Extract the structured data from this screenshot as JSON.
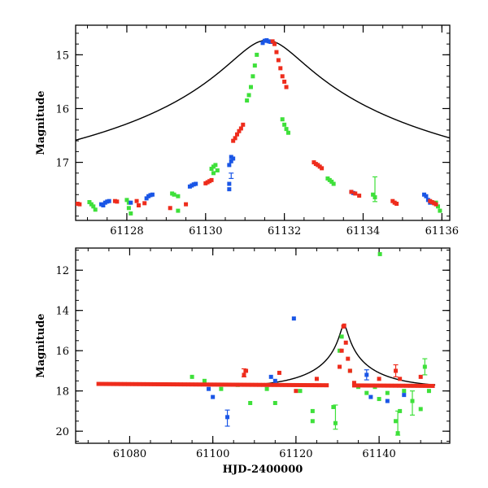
{
  "chart_data": [
    {
      "type": "scatter",
      "panel": "top",
      "title": "",
      "xlabel": "",
      "ylabel": "Magnitude",
      "xlim": [
        61126.7,
        61136.2
      ],
      "ylim": [
        18.08,
        14.45
      ],
      "y_inverted": true,
      "x_ticks": [
        61128,
        61130,
        61132,
        61134,
        61136
      ],
      "y_ticks": [
        15,
        16,
        17
      ],
      "model": {
        "t0": 61131.55,
        "peak_mag": 14.73,
        "base_mag": 17.86,
        "u0": 0.053,
        "tE": 16.0
      },
      "series": [
        {
          "name": "red",
          "color": "#ee2c1c",
          "points": [
            [
              61126.75,
              17.77
            ],
            [
              61126.8,
              17.78
            ],
            [
              61127.7,
              17.72
            ],
            [
              61127.75,
              17.73
            ],
            [
              61128.25,
              17.72
            ],
            [
              61128.3,
              17.8
            ],
            [
              61128.45,
              17.76
            ],
            [
              61129.1,
              17.85
            ],
            [
              61129.5,
              17.78
            ],
            [
              61130.0,
              17.39
            ],
            [
              61130.05,
              17.37
            ],
            [
              61130.1,
              17.35
            ],
            [
              61130.15,
              17.33
            ],
            [
              61130.7,
              16.6
            ],
            [
              61130.75,
              16.55
            ],
            [
              61130.8,
              16.48
            ],
            [
              61130.85,
              16.42
            ],
            [
              61130.9,
              16.37
            ],
            [
              61130.95,
              16.3
            ],
            [
              61131.7,
              14.75
            ],
            [
              61131.75,
              14.8
            ],
            [
              61131.8,
              14.95
            ],
            [
              61131.85,
              15.1
            ],
            [
              61131.9,
              15.25
            ],
            [
              61131.95,
              15.4
            ],
            [
              61132.0,
              15.5
            ],
            [
              61132.05,
              15.6
            ],
            [
              61132.75,
              17.0
            ],
            [
              61132.8,
              17.03
            ],
            [
              61132.85,
              17.05
            ],
            [
              61132.9,
              17.08
            ],
            [
              61132.95,
              17.11
            ],
            [
              61133.7,
              17.55
            ],
            [
              61133.8,
              17.58
            ],
            [
              61133.9,
              17.62
            ],
            [
              61134.75,
              17.72
            ],
            [
              61134.8,
              17.75
            ],
            [
              61134.85,
              17.77
            ],
            [
              61135.7,
              17.72
            ],
            [
              61135.75,
              17.74
            ],
            [
              61135.8,
              17.76
            ],
            [
              61135.85,
              17.78
            ]
          ]
        },
        {
          "name": "blue",
          "color": "#1a56e6",
          "points": [
            [
              61127.35,
              17.78
            ],
            [
              61127.4,
              17.8
            ],
            [
              61127.45,
              17.75
            ],
            [
              61127.5,
              17.73
            ],
            [
              61127.55,
              17.72
            ],
            [
              61128.1,
              17.75
            ],
            [
              61128.5,
              17.67
            ],
            [
              61128.55,
              17.63
            ],
            [
              61128.6,
              17.61
            ],
            [
              61128.65,
              17.6
            ],
            [
              61129.6,
              17.45
            ],
            [
              61129.65,
              17.43
            ],
            [
              61129.7,
              17.41
            ],
            [
              61129.75,
              17.4
            ],
            [
              61130.6,
              17.05
            ],
            [
              61130.6,
              17.4
            ],
            [
              61130.6,
              17.5
            ],
            [
              61130.65,
              16.98
            ],
            [
              61130.7,
              16.93
            ],
            [
              61130.65,
              16.9
            ],
            [
              61131.45,
              14.78
            ],
            [
              61131.5,
              14.74
            ],
            [
              61131.55,
              14.73
            ],
            [
              61131.6,
              14.75
            ],
            [
              61131.65,
              14.76
            ],
            [
              61133.7,
              17.55
            ],
            [
              61133.75,
              17.57
            ],
            [
              61135.55,
              17.6
            ],
            [
              61135.6,
              17.63
            ],
            [
              61135.65,
              17.7
            ],
            [
              61135.7,
              17.75
            ]
          ]
        },
        {
          "name": "green",
          "color": "#3ee03a",
          "points": [
            [
              61127.05,
              17.74
            ],
            [
              61127.1,
              17.78
            ],
            [
              61127.15,
              17.82
            ],
            [
              61127.2,
              17.88
            ],
            [
              61128.0,
              17.7
            ],
            [
              61128.05,
              17.75
            ],
            [
              61128.05,
              17.85
            ],
            [
              61128.1,
              17.95
            ],
            [
              61129.15,
              17.58
            ],
            [
              61129.2,
              17.6
            ],
            [
              61129.3,
              17.63
            ],
            [
              61129.3,
              17.9
            ],
            [
              61130.15,
              17.12
            ],
            [
              61130.2,
              17.08
            ],
            [
              61130.25,
              17.05
            ],
            [
              61130.3,
              17.15
            ],
            [
              61130.2,
              17.2
            ],
            [
              61131.05,
              15.85
            ],
            [
              61131.1,
              15.75
            ],
            [
              61131.15,
              15.6
            ],
            [
              61131.2,
              15.4
            ],
            [
              61131.25,
              15.2
            ],
            [
              61131.3,
              15.0
            ],
            [
              61131.95,
              16.2
            ],
            [
              61132.0,
              16.3
            ],
            [
              61132.05,
              16.38
            ],
            [
              61132.1,
              16.45
            ],
            [
              61133.1,
              17.3
            ],
            [
              61133.15,
              17.33
            ],
            [
              61133.2,
              17.36
            ],
            [
              61133.25,
              17.4
            ],
            [
              61134.25,
              17.6
            ],
            [
              61134.3,
              17.65
            ],
            [
              61135.85,
              17.75
            ],
            [
              61135.9,
              17.82
            ],
            [
              61135.95,
              17.9
            ]
          ]
        }
      ],
      "error_bars": [
        {
          "series": "green",
          "x": 61134.3,
          "y": 17.5,
          "yerr": 0.23
        },
        {
          "series": "blue",
          "x": 61130.65,
          "y": 17.25,
          "yerr": 0.05
        }
      ]
    },
    {
      "type": "scatter",
      "panel": "bottom",
      "title": "",
      "xlabel": "HJD-2400000",
      "ylabel": "Magnitude",
      "xlim": [
        61067,
        61157
      ],
      "ylim": [
        20.6,
        10.9
      ],
      "y_inverted": true,
      "x_ticks": [
        61080,
        61100,
        61120,
        61140
      ],
      "y_ticks": [
        12,
        14,
        16,
        18,
        20
      ],
      "model": {
        "t0": 61131.55,
        "peak_mag": 14.73,
        "base_mag": 17.86,
        "u0": 0.053,
        "tE": 16.0
      },
      "baseline": {
        "x_start": 61072.5,
        "x_end": 61153.5,
        "mag_start": 17.65,
        "mag_end": 17.75
      },
      "series": [
        {
          "name": "red",
          "color": "#ee2c1c",
          "points": [
            [
              61107.5,
              17.2
            ],
            [
              61108,
              17.0
            ],
            [
              61116,
              17.1
            ],
            [
              61120,
              18.0
            ],
            [
              61125,
              17.4
            ],
            [
              61130.5,
              16.8
            ],
            [
              61131,
              16.0
            ],
            [
              61131.4,
              14.8
            ],
            [
              61131.6,
              14.75
            ],
            [
              61132,
              15.6
            ],
            [
              61132.5,
              16.4
            ],
            [
              61133,
              17.0
            ],
            [
              61134,
              17.6
            ],
            [
              61140,
              17.4
            ],
            [
              61144,
              17.0
            ],
            [
              61145,
              17.4
            ],
            [
              61150,
              17.3
            ]
          ]
        },
        {
          "name": "blue",
          "color": "#1a56e6",
          "points": [
            [
              61099,
              17.9
            ],
            [
              61100,
              18.3
            ],
            [
              61103.5,
              19.3
            ],
            [
              61114,
              17.3
            ],
            [
              61115,
              17.5
            ],
            [
              61119.5,
              14.4
            ],
            [
              61131.5,
              14.8
            ],
            [
              61137,
              17.2
            ],
            [
              61138,
              18.3
            ],
            [
              61142,
              18.5
            ],
            [
              61146,
              18.2
            ]
          ]
        },
        {
          "name": "green",
          "color": "#3ee03a",
          "points": [
            [
              61095,
              17.3
            ],
            [
              61098,
              17.5
            ],
            [
              61102,
              17.9
            ],
            [
              61106,
              17.7
            ],
            [
              61109,
              18.6
            ],
            [
              61113,
              17.9
            ],
            [
              61115,
              18.6
            ],
            [
              61121,
              18.0
            ],
            [
              61124,
              19.0
            ],
            [
              61124,
              19.5
            ],
            [
              61129,
              18.8
            ],
            [
              61129.5,
              19.6
            ],
            [
              61130.5,
              16.0
            ],
            [
              61131,
              15.3
            ],
            [
              61133,
              17.0
            ],
            [
              61135,
              17.8
            ],
            [
              61137,
              18.1
            ],
            [
              61139,
              17.8
            ],
            [
              61140.2,
              11.2
            ],
            [
              61140,
              18.4
            ],
            [
              61142,
              18.1
            ],
            [
              61144,
              19.5
            ],
            [
              61144.5,
              20.1
            ],
            [
              61145,
              19.0
            ],
            [
              61146,
              18.0
            ],
            [
              61148,
              18.5
            ],
            [
              61150,
              18.9
            ],
            [
              61151,
              16.8
            ],
            [
              61152,
              18.0
            ]
          ]
        }
      ],
      "error_bars": [
        {
          "series": "blue",
          "x": 61103.5,
          "y": 19.35,
          "yerr": 0.4
        },
        {
          "series": "blue",
          "x": 61137,
          "y": 17.2,
          "yerr": 0.25
        },
        {
          "series": "red",
          "x": 61107.5,
          "y": 17.1,
          "yerr": 0.2
        },
        {
          "series": "red",
          "x": 61144,
          "y": 17.0,
          "yerr": 0.3
        },
        {
          "series": "green",
          "x": 61151,
          "y": 16.8,
          "yerr": 0.4
        },
        {
          "series": "green",
          "x": 61144.5,
          "y": 19.6,
          "yerr": 0.6
        },
        {
          "series": "green",
          "x": 61129.5,
          "y": 19.3,
          "yerr": 0.6
        },
        {
          "series": "green",
          "x": 61148,
          "y": 18.6,
          "yerr": 0.6
        }
      ]
    }
  ]
}
